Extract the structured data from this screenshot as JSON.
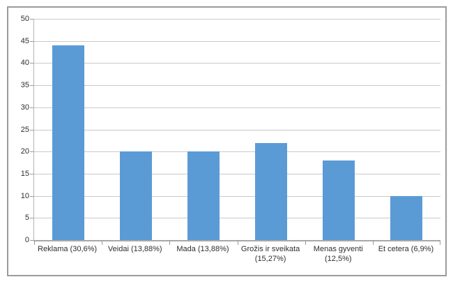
{
  "chart_data": {
    "type": "bar",
    "categories": [
      "Reklama (30,6%)",
      "Veidai (13,88%)",
      "Mada (13,88%)",
      "Grožis ir sveikata (15,27%)",
      "Menas gyventi (12,5%)",
      "Et cetera (6,9%)"
    ],
    "values": [
      44,
      20,
      20,
      22,
      18,
      10
    ],
    "title": "",
    "xlabel": "",
    "ylabel": "",
    "ylim": [
      0,
      50
    ],
    "yticks": [
      0,
      5,
      10,
      15,
      20,
      25,
      30,
      35,
      40,
      45,
      50
    ],
    "grid": true,
    "legend": false,
    "bar_color": "#5b9bd5"
  },
  "colors": {
    "background": "#ffffff",
    "frame_border": "#9b9b9b",
    "gridline": "#c9c9c9",
    "x_axis": "#a8a8a8",
    "y_axis": "#b3b3b3",
    "tick": "#9a9a9a",
    "label_text": "#2e2e2e",
    "bar": "#5b9bd5"
  }
}
